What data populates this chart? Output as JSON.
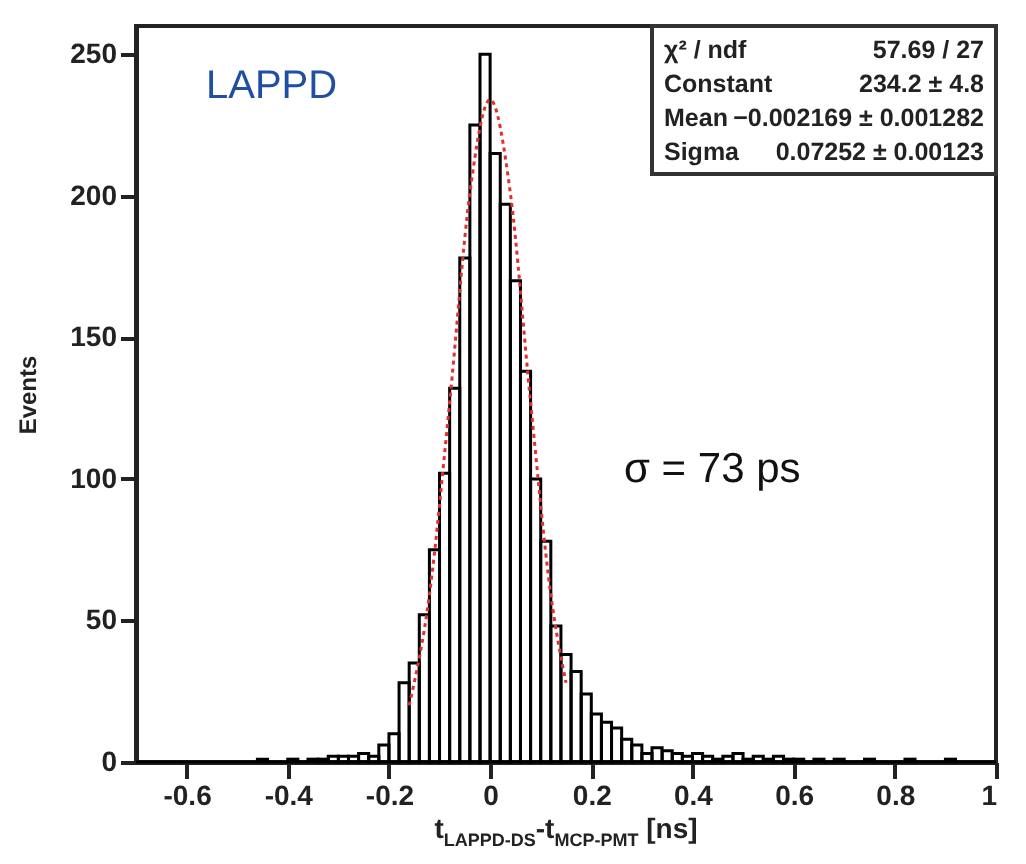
{
  "chart_data": {
    "type": "histogram",
    "xlabel": "t$_{LAPPD-DS}$-t$_{MCP-PMT}$ [ns]",
    "ylabel": "Events",
    "bins": [
      -0.7,
      -0.68,
      -0.66,
      -0.64,
      -0.62,
      -0.6,
      -0.58,
      -0.56,
      -0.54,
      -0.52,
      -0.5,
      -0.48,
      -0.46,
      -0.44,
      -0.42,
      -0.4,
      -0.38,
      -0.36,
      -0.34,
      -0.32,
      -0.3,
      -0.28,
      -0.26,
      -0.24,
      -0.22,
      -0.2,
      -0.18,
      -0.16,
      -0.14,
      -0.12,
      -0.1,
      -0.08,
      -0.06,
      -0.04,
      -0.02,
      0,
      0.02,
      0.04,
      0.06,
      0.08,
      0.1,
      0.12,
      0.14,
      0.16,
      0.18,
      0.2,
      0.22,
      0.24,
      0.26,
      0.28,
      0.3,
      0.32,
      0.34,
      0.36,
      0.38,
      0.4,
      0.42,
      0.44,
      0.46,
      0.48,
      0.5,
      0.52,
      0.54,
      0.56,
      0.58,
      0.6,
      0.62,
      0.64,
      0.66,
      0.68,
      0.7,
      0.72,
      0.74,
      0.76,
      0.78,
      0.8,
      0.82,
      0.84,
      0.86,
      0.88,
      0.9,
      0.92,
      0.94,
      0.96,
      0.98,
      1.0
    ],
    "values": [
      0,
      0,
      0,
      0,
      0,
      0,
      0,
      0,
      0,
      0,
      0,
      0,
      1,
      0,
      0,
      1,
      0,
      1,
      1,
      2,
      2,
      2,
      3,
      2,
      6,
      10,
      28,
      35,
      52,
      75,
      102,
      132,
      178,
      225,
      250,
      215,
      197,
      170,
      138,
      100,
      78,
      48,
      38,
      32,
      24,
      17,
      14,
      12,
      8,
      6,
      3,
      5,
      4,
      3,
      2,
      3,
      2,
      1,
      2,
      3,
      1,
      2,
      1,
      2,
      1,
      1,
      0,
      1,
      0,
      1,
      0,
      0,
      1,
      0,
      0,
      0,
      1,
      0,
      0,
      0,
      1,
      0,
      0,
      0,
      0
    ],
    "color": "#000000",
    "series": [
      {
        "type": "line",
        "color": "#e03030",
        "line_style": "dotted",
        "x": [
          -0.16,
          -0.12,
          -0.08,
          -0.04,
          0,
          0.04,
          0.08,
          0.12,
          0.15
        ],
        "values": [
          20,
          59,
          127,
          201,
          234,
          201,
          127,
          59,
          28
        ]
      }
    ],
    "xlim": [
      -0.7,
      1.0
    ],
    "ylim": [
      0,
      260
    ],
    "xticks": [
      -0.6,
      -0.4,
      -0.2,
      0,
      0.2,
      0.4,
      0.6,
      0.8,
      1
    ],
    "yticks": [
      0,
      50,
      100,
      150,
      200,
      250
    ],
    "grid": false,
    "annotations": [
      "LAPPD",
      "σ = 73 ps",
      "χ² / ndf",
      "57.69 / 27",
      "Constant",
      "234.2 ± 4.8",
      "Mean",
      "−0.002169 ± 0.001282",
      "Sigma",
      "0.07252 ± 0.00123"
    ]
  }
}
